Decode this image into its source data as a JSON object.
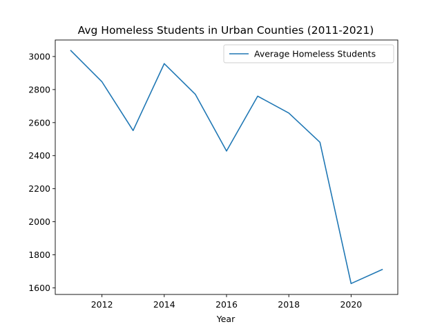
{
  "chart_data": {
    "type": "line",
    "title": "Avg Homeless Students in Urban Counties (2011-2021)",
    "xlabel": "Year",
    "ylabel": "",
    "xlim": [
      2010.5,
      2021.5
    ],
    "ylim": [
      1560,
      3100
    ],
    "xticks": [
      2012,
      2014,
      2016,
      2018,
      2020
    ],
    "yticks": [
      1600,
      1800,
      2000,
      2200,
      2400,
      2600,
      2800,
      3000
    ],
    "grid": false,
    "legend_position": "top-right",
    "series": [
      {
        "name": "Average Homeless Students",
        "color": "#1f77b4",
        "x": [
          2011,
          2012,
          2013,
          2014,
          2015,
          2016,
          2017,
          2018,
          2019,
          2020,
          2021
        ],
        "values": [
          3036,
          2847,
          2552,
          2957,
          2771,
          2428,
          2760,
          2658,
          2481,
          1626,
          1711
        ]
      }
    ]
  }
}
